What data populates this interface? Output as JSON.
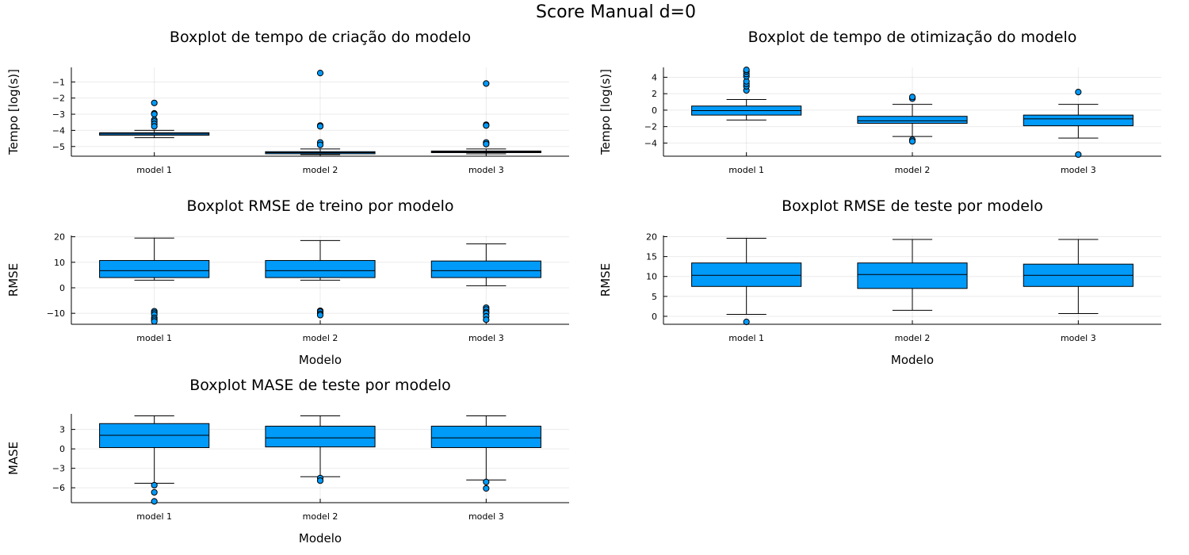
{
  "figure": {
    "suptitle": "Score Manual d=0"
  },
  "colors": {
    "box_fill": "#009af9",
    "outline": "#000000",
    "background": "#ffffff"
  },
  "chart_data": [
    {
      "type": "box",
      "title": "Boxplot de tempo de criação do modelo",
      "xlabel": "",
      "ylabel": "Tempo [log(s)]",
      "categories": [
        "model 1",
        "model 2",
        "model 3"
      ],
      "ylim": [
        -5.6,
        -0.1
      ],
      "yticks": [
        -5,
        -4,
        -3,
        -2,
        -1
      ],
      "ytick_labels": [
        "−5",
        "−4",
        "−3",
        "−2",
        "−1"
      ],
      "grid": true,
      "legend": "none",
      "boxes": [
        {
          "q1": -4.3,
          "median": -4.22,
          "q3": -4.15,
          "whisker_low": -4.45,
          "whisker_high": -4.0,
          "outliers": [
            -2.3,
            -2.95,
            -3.0,
            -3.35,
            -3.45,
            -3.6,
            -3.75
          ]
        },
        {
          "q1": -5.45,
          "median": -5.38,
          "q3": -5.32,
          "whisker_low": -5.5,
          "whisker_high": -5.15,
          "outliers": [
            -0.45,
            -3.7,
            -3.75,
            -4.75,
            -4.9
          ]
        },
        {
          "q1": -5.38,
          "median": -5.33,
          "q3": -5.28,
          "whisker_low": -5.45,
          "whisker_high": -5.15,
          "outliers": [
            -1.1,
            -3.65,
            -3.7,
            -4.75,
            -4.85
          ]
        }
      ]
    },
    {
      "type": "box",
      "title": "Boxplot de tempo de otimização do modelo",
      "xlabel": "",
      "ylabel": "Tempo [log(s)]",
      "categories": [
        "model 1",
        "model 2",
        "model 3"
      ],
      "ylim": [
        -5.6,
        5.2
      ],
      "yticks": [
        -4,
        -2,
        0,
        2,
        4
      ],
      "ytick_labels": [
        "−4",
        "−2",
        "0",
        "2",
        "4"
      ],
      "grid": true,
      "legend": "none",
      "boxes": [
        {
          "q1": -0.6,
          "median": -0.05,
          "q3": 0.5,
          "whisker_low": -1.2,
          "whisker_high": 1.3,
          "outliers": [
            2.4,
            2.9,
            3.2,
            3.5,
            4.1,
            4.4,
            4.7,
            4.9
          ]
        },
        {
          "q1": -1.6,
          "median": -1.3,
          "q3": -0.75,
          "whisker_low": -3.2,
          "whisker_high": 0.7,
          "outliers": [
            1.4,
            1.6,
            -3.6,
            -3.8
          ]
        },
        {
          "q1": -1.9,
          "median": -1.05,
          "q3": -0.6,
          "whisker_low": -3.4,
          "whisker_high": 0.7,
          "outliers": [
            2.2,
            -5.4
          ]
        }
      ]
    },
    {
      "type": "box",
      "title": "Boxplot RMSE de treino por modelo",
      "xlabel": "Modelo",
      "ylabel": "RMSE",
      "categories": [
        "model 1",
        "model 2",
        "model 3"
      ],
      "ylim": [
        -14.3,
        20.5
      ],
      "yticks": [
        -10,
        0,
        10,
        20
      ],
      "ytick_labels": [
        "−10",
        "0",
        "10",
        "20"
      ],
      "grid": true,
      "legend": "none",
      "boxes": [
        {
          "q1": 4.0,
          "median": 6.7,
          "q3": 10.7,
          "whisker_low": 3.0,
          "whisker_high": 19.5,
          "outliers": [
            -9.2,
            -9.8,
            -10.5,
            -11.8,
            -12.5,
            -13.2
          ]
        },
        {
          "q1": 4.0,
          "median": 6.7,
          "q3": 10.7,
          "whisker_low": 3.0,
          "whisker_high": 18.5,
          "outliers": [
            -9.0,
            -9.4,
            -10.2,
            -10.7
          ]
        },
        {
          "q1": 4.0,
          "median": 6.7,
          "q3": 10.5,
          "whisker_low": 0.8,
          "whisker_high": 17.2,
          "outliers": [
            -7.8,
            -8.5,
            -9.5,
            -10.0,
            -11.2,
            -12.5
          ]
        }
      ]
    },
    {
      "type": "box",
      "title": "Boxplot RMSE de teste por modelo",
      "xlabel": "Modelo",
      "ylabel": "RMSE",
      "categories": [
        "model 1",
        "model 2",
        "model 3"
      ],
      "ylim": [
        -2.0,
        20.3
      ],
      "yticks": [
        0,
        5,
        10,
        15,
        20
      ],
      "ytick_labels": [
        "0",
        "5",
        "10",
        "15",
        "20"
      ],
      "grid": true,
      "legend": "none",
      "boxes": [
        {
          "q1": 7.5,
          "median": 10.3,
          "q3": 13.4,
          "whisker_low": 0.5,
          "whisker_high": 19.6,
          "outliers": [
            -1.4
          ]
        },
        {
          "q1": 7.0,
          "median": 10.5,
          "q3": 13.4,
          "whisker_low": 1.5,
          "whisker_high": 19.3,
          "outliers": []
        },
        {
          "q1": 7.5,
          "median": 10.3,
          "q3": 13.1,
          "whisker_low": 0.7,
          "whisker_high": 19.3,
          "outliers": []
        }
      ]
    },
    {
      "type": "box",
      "title": "Boxplot MASE de teste por modelo",
      "xlabel": "Modelo",
      "ylabel": "MASE",
      "categories": [
        "model 1",
        "model 2",
        "model 3"
      ],
      "ylim": [
        -8.3,
        5.4
      ],
      "yticks": [
        -6,
        -3,
        0,
        3
      ],
      "ytick_labels": [
        "−6",
        "−3",
        "0",
        "3"
      ],
      "grid": true,
      "legend": "none",
      "boxes": [
        {
          "q1": 0.2,
          "median": 2.1,
          "q3": 3.9,
          "whisker_low": -5.3,
          "whisker_high": 5.1,
          "outliers": [
            -5.6,
            -6.7,
            -8.1
          ]
        },
        {
          "q1": 0.3,
          "median": 1.7,
          "q3": 3.5,
          "whisker_low": -4.3,
          "whisker_high": 5.1,
          "outliers": [
            -4.5,
            -4.9
          ]
        },
        {
          "q1": 0.2,
          "median": 1.7,
          "q3": 3.5,
          "whisker_low": -4.8,
          "whisker_high": 5.1,
          "outliers": [
            -5.1,
            -6.1
          ]
        }
      ]
    }
  ]
}
